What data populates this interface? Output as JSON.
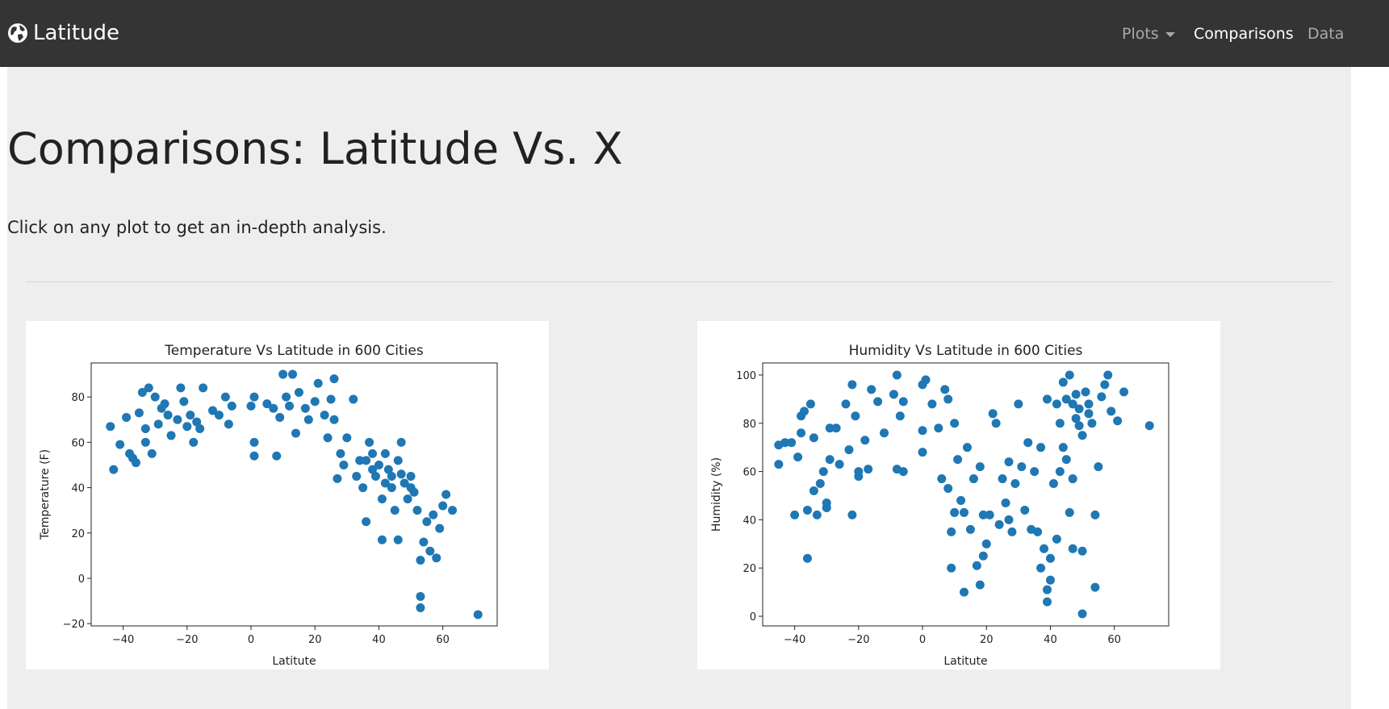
{
  "navbar": {
    "brand": "Latitude",
    "links": [
      "Plots",
      "Comparisons",
      "Data"
    ]
  },
  "header": {
    "title": "Comparisons: Latitude Vs. X",
    "subtitle": "Click on any plot to get an in-depth analysis."
  },
  "chart_data": [
    {
      "type": "scatter",
      "title": "Temperature Vs Latitude in 600 Cities",
      "xlabel": "Latitute",
      "ylabel": "Temperature (F)",
      "color": "#1f77b4",
      "xlim": [
        -50,
        77
      ],
      "ylim": [
        -21,
        95
      ],
      "xticks": [
        {
          "value": -40,
          "label": "−40"
        },
        {
          "value": -20,
          "label": "−20"
        },
        0,
        20,
        40,
        60
      ],
      "yticks": [
        {
          "value": -20,
          "label": "−20"
        },
        0,
        20,
        40,
        60,
        80
      ],
      "x": [
        -44,
        -43,
        -41,
        -39,
        -38,
        -37,
        -36,
        -35,
        -34,
        -33,
        -33,
        -32,
        -31,
        -30,
        -29,
        -28,
        -27,
        -26,
        -25,
        -23,
        -22,
        -21,
        -20,
        -19,
        -18,
        -17,
        -16,
        -15,
        -12,
        -10,
        -8,
        -7,
        -6,
        0,
        1,
        1,
        1,
        5,
        7,
        8,
        9,
        10,
        11,
        12,
        13,
        14,
        15,
        17,
        18,
        20,
        21,
        23,
        24,
        25,
        26,
        26,
        27,
        28,
        29,
        30,
        32,
        33,
        34,
        35,
        36,
        37,
        38,
        39,
        40,
        41,
        41,
        42,
        43,
        44,
        45,
        46,
        46,
        47,
        48,
        49,
        50,
        51,
        52,
        53,
        53,
        53,
        54,
        55,
        56,
        57,
        58,
        59,
        60,
        61,
        63,
        71,
        44,
        42,
        47,
        50,
        38,
        36
      ],
      "values": [
        67,
        48,
        59,
        71,
        55,
        53,
        51,
        73,
        82,
        66,
        60,
        84,
        55,
        80,
        68,
        75,
        77,
        72,
        63,
        70,
        84,
        78,
        67,
        72,
        60,
        69,
        66,
        84,
        74,
        72,
        80,
        68,
        76,
        76,
        80,
        60,
        54,
        77,
        75,
        54,
        71,
        90,
        80,
        76,
        90,
        64,
        82,
        75,
        70,
        78,
        86,
        72,
        62,
        79,
        88,
        70,
        44,
        55,
        50,
        62,
        79,
        45,
        52,
        40,
        25,
        60,
        55,
        45,
        50,
        17,
        35,
        55,
        48,
        40,
        30,
        17,
        52,
        60,
        42,
        35,
        45,
        38,
        30,
        8,
        -8,
        -13,
        16,
        25,
        12,
        28,
        9,
        22,
        32,
        37,
        30,
        -16,
        45,
        42,
        46,
        40,
        48,
        52
      ]
    },
    {
      "type": "scatter",
      "title": "Humidity Vs Latitude in 600 Cities",
      "xlabel": "Latitute",
      "ylabel": "Humidity (%)",
      "color": "#1f77b4",
      "xlim": [
        -50,
        77
      ],
      "ylim": [
        -4,
        105
      ],
      "xticks": [
        {
          "value": -40,
          "label": "−40"
        },
        {
          "value": -20,
          "label": "−20"
        },
        0,
        20,
        40,
        60
      ],
      "yticks": [
        0,
        20,
        40,
        60,
        80,
        100
      ],
      "x": [
        -45,
        -45,
        -43,
        -41,
        -40,
        -39,
        -38,
        -38,
        -37,
        -36,
        -36,
        -35,
        -34,
        -34,
        -33,
        -32,
        -31,
        -30,
        -30,
        -29,
        -29,
        -27,
        -26,
        -24,
        -23,
        -22,
        -22,
        -21,
        -20,
        -20,
        -18,
        -17,
        -16,
        -14,
        -12,
        -9,
        -8,
        -8,
        -7,
        -6,
        -6,
        0,
        0,
        0,
        1,
        3,
        5,
        6,
        7,
        8,
        8,
        9,
        9,
        10,
        10,
        11,
        12,
        13,
        13,
        14,
        15,
        16,
        17,
        18,
        18,
        19,
        19,
        20,
        21,
        22,
        23,
        24,
        25,
        26,
        27,
        27,
        28,
        29,
        30,
        31,
        32,
        33,
        34,
        35,
        36,
        37,
        37,
        38,
        39,
        39,
        39,
        40,
        40,
        41,
        42,
        42,
        43,
        44,
        45,
        45,
        46,
        47,
        47,
        48,
        49,
        50,
        50,
        50,
        51,
        52,
        53,
        54,
        54,
        55,
        56,
        57,
        58,
        59,
        61,
        63,
        71,
        46,
        48,
        44,
        49,
        43,
        52,
        47
      ],
      "values": [
        71,
        63,
        72,
        72,
        42,
        66,
        76,
        83,
        85,
        24,
        44,
        88,
        74,
        52,
        42,
        55,
        60,
        45,
        47,
        78,
        65,
        78,
        63,
        88,
        69,
        42,
        96,
        83,
        58,
        60,
        73,
        61,
        94,
        89,
        76,
        92,
        100,
        61,
        83,
        89,
        60,
        68,
        77,
        96,
        98,
        88,
        78,
        57,
        94,
        53,
        90,
        35,
        20,
        43,
        80,
        65,
        48,
        10,
        43,
        70,
        36,
        57,
        21,
        62,
        13,
        25,
        42,
        30,
        42,
        84,
        80,
        38,
        57,
        47,
        40,
        64,
        35,
        55,
        88,
        62,
        44,
        72,
        36,
        60,
        35,
        20,
        70,
        28,
        6,
        11,
        90,
        15,
        24,
        55,
        88,
        32,
        80,
        97,
        90,
        65,
        43,
        28,
        57,
        82,
        86,
        1,
        27,
        75,
        93,
        88,
        80,
        12,
        42,
        62,
        91,
        96,
        100,
        85,
        81,
        93,
        79,
        100,
        92,
        70,
        79,
        60,
        84,
        88
      ]
    }
  ]
}
